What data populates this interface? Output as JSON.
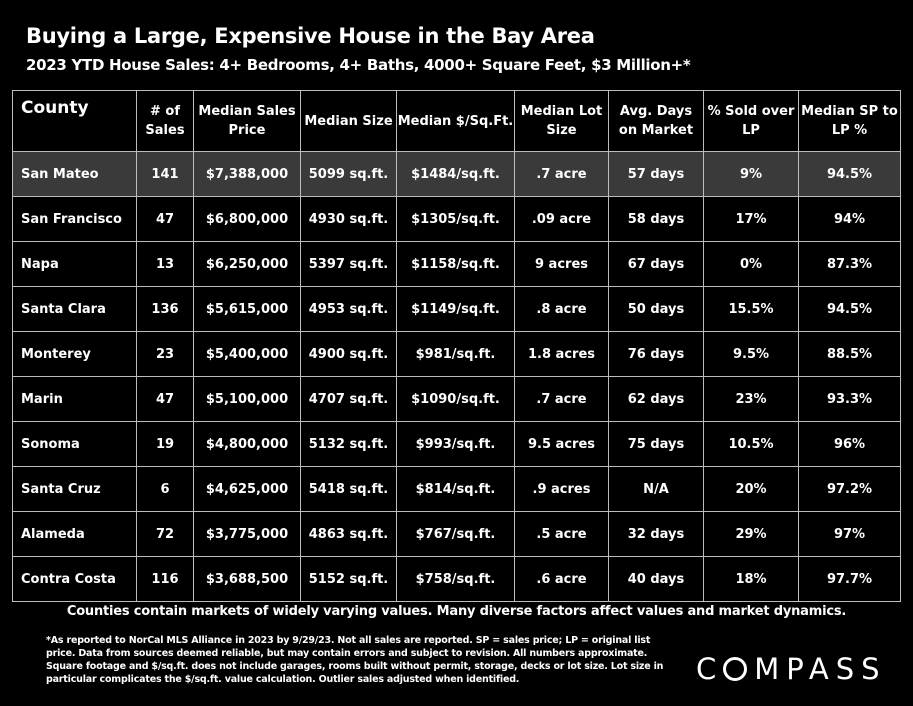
{
  "title": "Buying a Large, Expensive House in the Bay Area",
  "subtitle": "2023 YTD House Sales:  4+ Bedrooms, 4+ Baths, 4000+ Square Feet, $3 Million+*",
  "headers": [
    "County",
    "# of Sales",
    "Median Sales Price",
    "Median Size",
    "Median $/Sq.Ft.",
    "Median Lot Size",
    "Avg. Days on Market",
    "% Sold over LP",
    "Median SP to LP %"
  ],
  "rows": [
    [
      "San Mateo",
      "141",
      "$7,388,000",
      "5099 sq.ft.",
      "$1484/sq.ft.",
      ".7 acre",
      "57 days",
      "9%",
      "94.5%"
    ],
    [
      "San Francisco",
      "47",
      "$6,800,000",
      "4930 sq.ft.",
      "$1305/sq.ft.",
      ".09 acre",
      "58 days",
      "17%",
      "94%"
    ],
    [
      "Napa",
      "13",
      "$6,250,000",
      "5397 sq.ft.",
      "$1158/sq.ft.",
      "9 acres",
      "67 days",
      "0%",
      "87.3%"
    ],
    [
      "Santa Clara",
      "136",
      "$5,615,000",
      "4953 sq.ft.",
      "$1149/sq.ft.",
      ".8 acre",
      "50 days",
      "15.5%",
      "94.5%"
    ],
    [
      "Monterey",
      "23",
      "$5,400,000",
      "4900 sq.ft.",
      "$981/sq.ft.",
      "1.8 acres",
      "76 days",
      "9.5%",
      "88.5%"
    ],
    [
      "Marin",
      "47",
      "$5,100,000",
      "4707 sq.ft.",
      "$1090/sq.ft.",
      ".7 acre",
      "62 days",
      "23%",
      "93.3%"
    ],
    [
      "Sonoma",
      "19",
      "$4,800,000",
      "5132 sq.ft.",
      "$993/sq.ft.",
      "9.5 acres",
      "75 days",
      "10.5%",
      "96%"
    ],
    [
      "Santa Cruz",
      "6",
      "$4,625,000",
      "5418 sq.ft.",
      "$814/sq.ft.",
      ".9 acres",
      "N/A",
      "20%",
      "97.2%"
    ],
    [
      "Alameda",
      "72",
      "$3,775,000",
      "4863 sq.ft.",
      "$767/sq.ft.",
      ".5 acre",
      "32 days",
      "29%",
      "97%"
    ],
    [
      "Contra Costa",
      "116",
      "$3,688,500",
      "5152 sq.ft.",
      "$758/sq.ft.",
      ".6 acre",
      "40 days",
      "18%",
      "97.7%"
    ]
  ],
  "highlight_row": 0,
  "footer": "Counties contain markets of widely varying values. Many diverse factors affect values and market dynamics.",
  "footnote": "*As reported to NorCal MLS Alliance in 2023 by 9/29/23. Not all sales are reported. SP = sales price;  LP = original list price. Data from sources deemed reliable, but may contain errors and subject to revision. All numbers approximate. Square footage and $/sq.ft. does not include garages, rooms built without permit, storage, decks or lot size. Lot size in particular complicates the $/sq.ft. value calculation. Outlier sales adjusted when identified.",
  "logo": "COMPASS"
}
